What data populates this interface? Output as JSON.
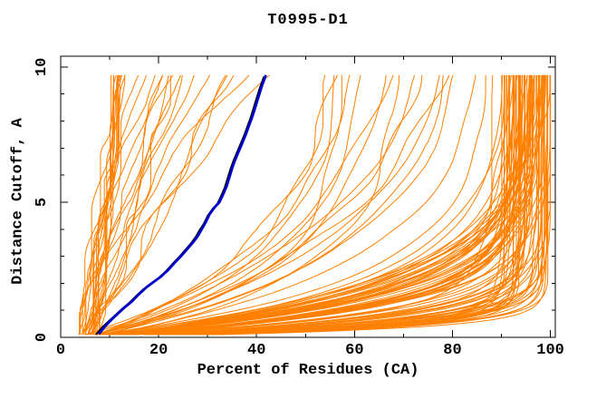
{
  "chart_data": {
    "type": "line",
    "title": "T0995-D1",
    "x_axis": {
      "label": "Percent of Residues (CA)",
      "range": [
        0,
        100
      ],
      "major_ticks": [
        0,
        20,
        40,
        60,
        80,
        100
      ],
      "tick_labels": [
        "0",
        "20",
        "40",
        "60",
        "80",
        "100"
      ],
      "minor_step": 10
    },
    "y_axis": {
      "label": "Distance Cutoff, A",
      "range": [
        0,
        10
      ],
      "major_ticks": [
        0,
        5,
        10
      ],
      "tick_labels": [
        "0",
        "5",
        "10"
      ],
      "minor_step": 1
    },
    "grid": false,
    "legend": "none",
    "colors": {
      "model_lines": "#ff8000",
      "highlight_main": "#0000cd",
      "highlight_secondary": "#000000",
      "axis": "#000000",
      "background": "#ffffff"
    },
    "series": [
      {
        "name": "highlighted-model-blue",
        "color": "#0000cd",
        "width": 2.8,
        "points": [
          [
            7.8,
            0.12
          ],
          [
            9.0,
            0.4
          ],
          [
            10.2,
            0.62
          ],
          [
            11.5,
            0.85
          ],
          [
            13.0,
            1.1
          ],
          [
            14.5,
            1.32
          ],
          [
            16.0,
            1.6
          ],
          [
            17.5,
            1.85
          ],
          [
            19.0,
            2.05
          ],
          [
            20.5,
            2.25
          ],
          [
            22.0,
            2.5
          ],
          [
            23.5,
            2.8
          ],
          [
            24.8,
            3.05
          ],
          [
            26.0,
            3.3
          ],
          [
            27.2,
            3.55
          ],
          [
            28.0,
            3.75
          ],
          [
            28.8,
            4.0
          ],
          [
            29.6,
            4.25
          ],
          [
            30.4,
            4.55
          ],
          [
            31.4,
            4.8
          ],
          [
            32.4,
            5.0
          ],
          [
            33.2,
            5.3
          ],
          [
            33.9,
            5.6
          ],
          [
            34.5,
            5.95
          ],
          [
            35.1,
            6.3
          ],
          [
            35.7,
            6.6
          ],
          [
            36.4,
            6.9
          ],
          [
            37.1,
            7.2
          ],
          [
            37.8,
            7.5
          ],
          [
            38.5,
            7.85
          ],
          [
            39.2,
            8.2
          ],
          [
            39.8,
            8.55
          ],
          [
            40.4,
            8.9
          ],
          [
            41.0,
            9.25
          ],
          [
            41.5,
            9.5
          ],
          [
            41.9,
            9.7
          ]
        ]
      },
      {
        "name": "highlighted-model-black",
        "color": "#000000",
        "width": 1.8,
        "points": [
          [
            7.2,
            0.1
          ],
          [
            8.5,
            0.38
          ],
          [
            9.8,
            0.6
          ],
          [
            11.0,
            0.8
          ],
          [
            12.5,
            1.05
          ],
          [
            14.0,
            1.28
          ],
          [
            15.5,
            1.55
          ],
          [
            17.0,
            1.8
          ],
          [
            18.5,
            2.0
          ],
          [
            20.0,
            2.2
          ],
          [
            21.5,
            2.45
          ],
          [
            23.0,
            2.75
          ],
          [
            24.3,
            3.0
          ],
          [
            25.5,
            3.25
          ],
          [
            26.7,
            3.5
          ],
          [
            27.5,
            3.7
          ],
          [
            28.3,
            3.95
          ],
          [
            29.2,
            4.2
          ],
          [
            30.0,
            4.5
          ],
          [
            31.0,
            4.75
          ],
          [
            32.0,
            4.95
          ],
          [
            32.8,
            5.25
          ],
          [
            33.5,
            5.55
          ],
          [
            34.1,
            5.9
          ],
          [
            34.7,
            6.25
          ],
          [
            35.3,
            6.55
          ],
          [
            36.0,
            6.85
          ],
          [
            36.7,
            7.15
          ],
          [
            37.4,
            7.45
          ],
          [
            38.1,
            7.8
          ],
          [
            38.8,
            8.15
          ],
          [
            39.4,
            8.5
          ],
          [
            40.0,
            8.85
          ],
          [
            40.6,
            9.2
          ],
          [
            41.1,
            9.45
          ],
          [
            41.5,
            9.65
          ]
        ]
      }
    ],
    "model_curves": {
      "note": "ensemble of server model GDT curves, drawn as thin orange lines; exact per-model values not individually legible, reconstructed procedurally",
      "color": "#ff8000",
      "width": 1,
      "seed": 1337,
      "start_x_range": [
        3.5,
        8.0
      ],
      "y_start": 0.1,
      "y_top": 9.7,
      "groups": [
        {
          "name": "converged-high-scoring",
          "count": 88,
          "form": "saturating",
          "end_x": {
            "min": 86,
            "spread": 14,
            "bias": 0.45
          },
          "tau": {
            "min": 0.3,
            "max": 2.2,
            "bias": 1.4
          },
          "wiggle": 0.5,
          "walk": 0.12
        },
        {
          "name": "mid-scoring",
          "count": 16,
          "form": "saturating",
          "end_x": {
            "min": 50,
            "spread": 36,
            "bias": 1.0
          },
          "tau": {
            "min": 1.5,
            "max": 4.5,
            "bias": 1.0
          },
          "wiggle": 0.9,
          "walk": 0.2
        },
        {
          "name": "low-scoring-steep",
          "count": 30,
          "form": "power",
          "end_x": {
            "min": 11,
            "spread": 37,
            "bias": 2.2
          },
          "power": {
            "min": 0.7,
            "max": 1.8
          },
          "wiggle": 1.2,
          "walk": 0.3
        }
      ]
    }
  }
}
